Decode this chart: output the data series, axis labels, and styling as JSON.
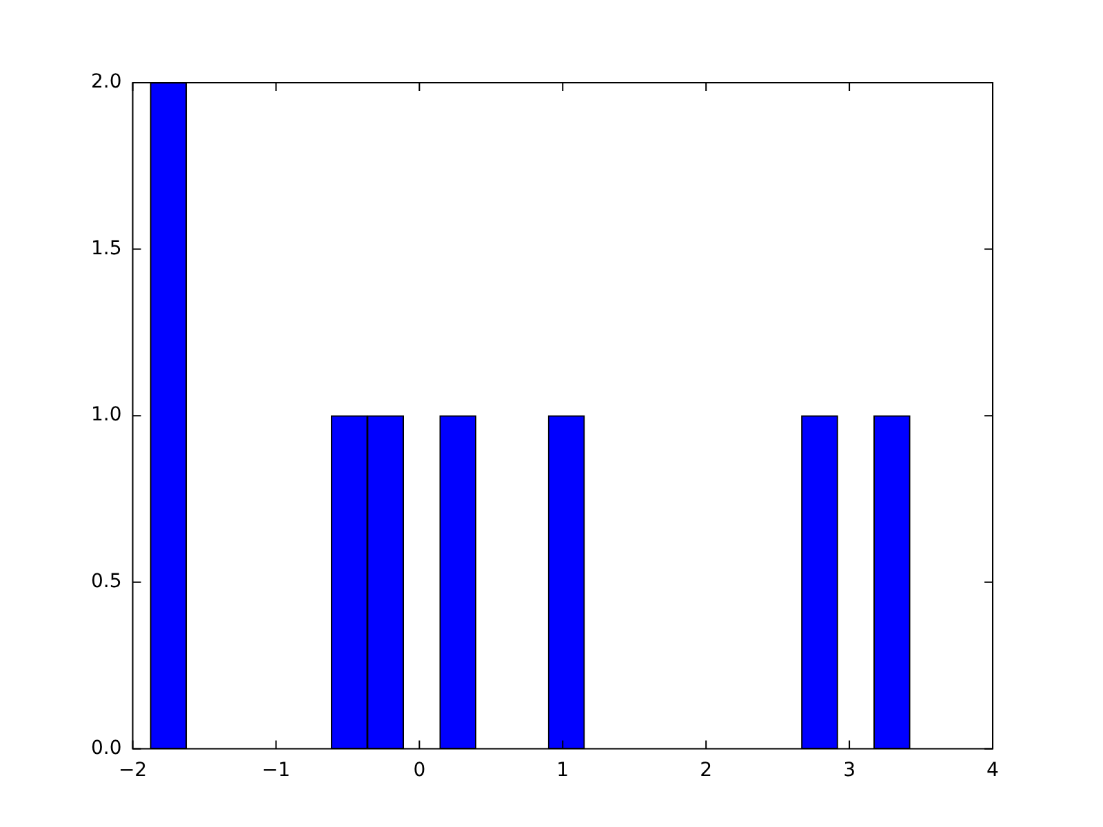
{
  "chart_data": {
    "type": "histogram",
    "bins": [
      -1.877,
      -1.625,
      -1.372,
      -1.12,
      -0.867,
      -0.615,
      -0.363,
      -0.11,
      0.142,
      0.395,
      0.647,
      0.899,
      1.152,
      1.404,
      1.657,
      1.909,
      2.161,
      2.414,
      2.666,
      2.919,
      3.171,
      3.423
    ],
    "values": [
      2,
      0,
      0,
      0,
      0,
      1,
      1,
      0,
      1,
      0,
      0,
      1,
      0,
      0,
      0,
      0,
      0,
      0,
      1,
      0,
      1
    ],
    "color": "#0000ff",
    "xlim": [
      -2,
      4
    ],
    "xticks": [
      {
        "value": -2,
        "label": "−2"
      },
      {
        "value": -1,
        "label": "−1"
      },
      0,
      1,
      2,
      3,
      4
    ],
    "ylim": [
      0,
      2
    ],
    "yticks": [
      {
        "value": 0,
        "label": "0.0"
      },
      {
        "value": 0.5,
        "label": "0.5"
      },
      {
        "value": 1,
        "label": "1.0"
      },
      {
        "value": 1.5,
        "label": "1.5"
      },
      {
        "value": 2,
        "label": "2.0"
      }
    ],
    "grid": false,
    "legend": false
  }
}
